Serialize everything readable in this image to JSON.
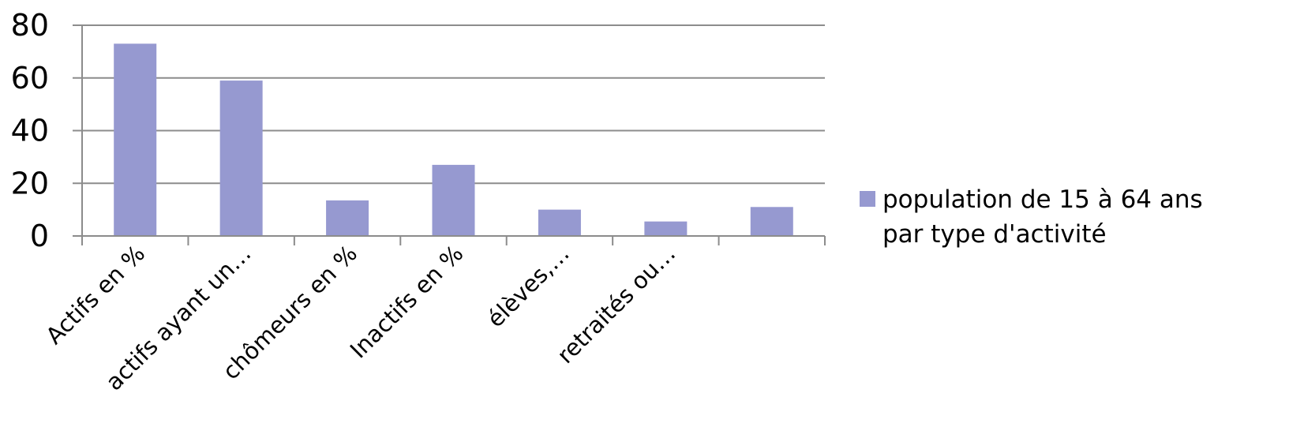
{
  "chart_data": {
    "type": "bar",
    "categories": [
      "Actifs en %",
      "actifs ayant un…",
      "chômeurs en %",
      "Inactifs en %",
      "élèves,…",
      "retraités ou…",
      ""
    ],
    "series": [
      {
        "name": "population de 15 à 64 ans par type d'activité",
        "values": [
          73,
          59,
          13.5,
          27,
          10,
          5.5,
          11
        ],
        "color": "#9699d0"
      }
    ],
    "ylim": [
      0,
      80
    ],
    "yticks": [
      "0",
      "20",
      "40",
      "60",
      "80"
    ],
    "grid": true,
    "legend": {
      "position": "right",
      "lines": [
        "population de 15 à 64 ans",
        "par type d'activité"
      ]
    }
  }
}
